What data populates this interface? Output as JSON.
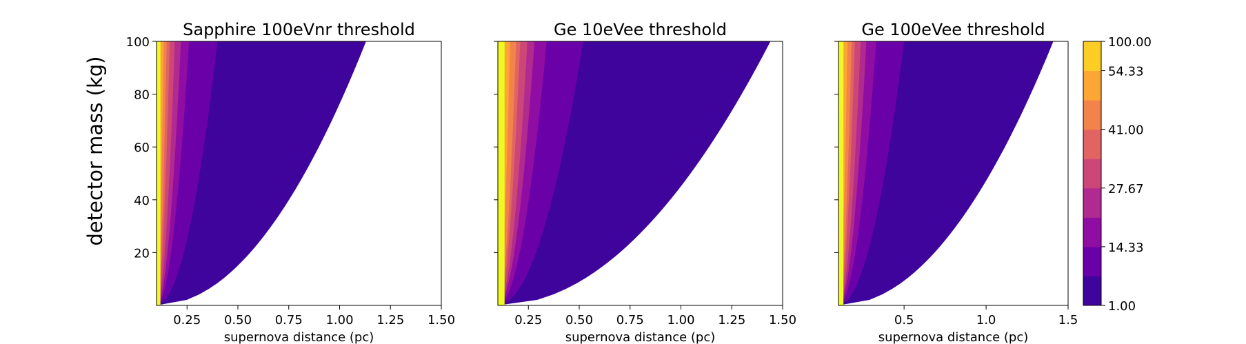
{
  "figure": {
    "ylabel": "detector mass (kg)"
  },
  "chart_data": [
    {
      "type": "contour",
      "title": "Sapphire 100eVnr threshold",
      "xlabel": "supernova distance (pc)",
      "xlim": [
        0.1,
        1.5
      ],
      "ylim": [
        0,
        100
      ],
      "xticks": [
        0.25,
        0.5,
        0.75,
        1.0,
        1.25,
        1.5
      ],
      "xtick_labels": [
        "0.25",
        "0.50",
        "0.75",
        "1.00",
        "1.25",
        "1.50"
      ],
      "yticks": [
        20,
        40,
        60,
        80,
        100
      ],
      "ytick_labels": [
        "20",
        "40",
        "60",
        "80",
        "100"
      ],
      "show_ytick_labels": true,
      "boundary_distance_at_100kg": [
        0.135,
        0.15,
        0.165,
        0.19,
        0.22,
        0.26,
        0.4,
        1.13
      ]
    },
    {
      "type": "contour",
      "title": "Ge 10eVee threshold",
      "xlabel": "supernova distance (pc)",
      "xlim": [
        0.1,
        1.5
      ],
      "ylim": [
        0,
        100
      ],
      "xticks": [
        0.25,
        0.5,
        0.75,
        1.0,
        1.25,
        1.5
      ],
      "xtick_labels": [
        "0.25",
        "0.50",
        "0.75",
        "1.00",
        "1.25",
        "1.50"
      ],
      "yticks": [
        20,
        40,
        60,
        80,
        100
      ],
      "ytick_labels": [],
      "show_ytick_labels": false,
      "boundary_distance_at_100kg": [
        0.16,
        0.19,
        0.21,
        0.245,
        0.28,
        0.34,
        0.52,
        1.44
      ]
    },
    {
      "type": "contour",
      "title": "Ge 100eVee threshold",
      "xlabel": "supernova distance (pc)",
      "xlim": [
        0.1,
        1.5
      ],
      "ylim": [
        0,
        100
      ],
      "xticks": [
        0.5,
        1.0,
        1.5
      ],
      "xtick_labels": [
        "0.5",
        "1.0",
        "1.5"
      ],
      "yticks": [
        20,
        40,
        60,
        80,
        100
      ],
      "ytick_labels": [],
      "show_ytick_labels": false,
      "boundary_distance_at_100kg": [
        0.155,
        0.18,
        0.2,
        0.235,
        0.27,
        0.33,
        0.5,
        1.41
      ]
    }
  ],
  "colorbar": {
    "levels": [
      1.0,
      7.67,
      14.33,
      21.0,
      27.67,
      34.33,
      41.0,
      47.67,
      54.33,
      100.0
    ],
    "tick_values": [
      1.0,
      14.33,
      27.67,
      41.0,
      54.33,
      100.0
    ],
    "tick_labels": [
      "1.00",
      "14.33",
      "27.67",
      "41.00",
      "54.33",
      "100.00"
    ],
    "colors": [
      "#3e049c",
      "#6a00a8",
      "#900da4",
      "#b12a90",
      "#cc4778",
      "#e16462",
      "#f2844b",
      "#fca636",
      "#fcce25",
      "#f0f921"
    ]
  }
}
